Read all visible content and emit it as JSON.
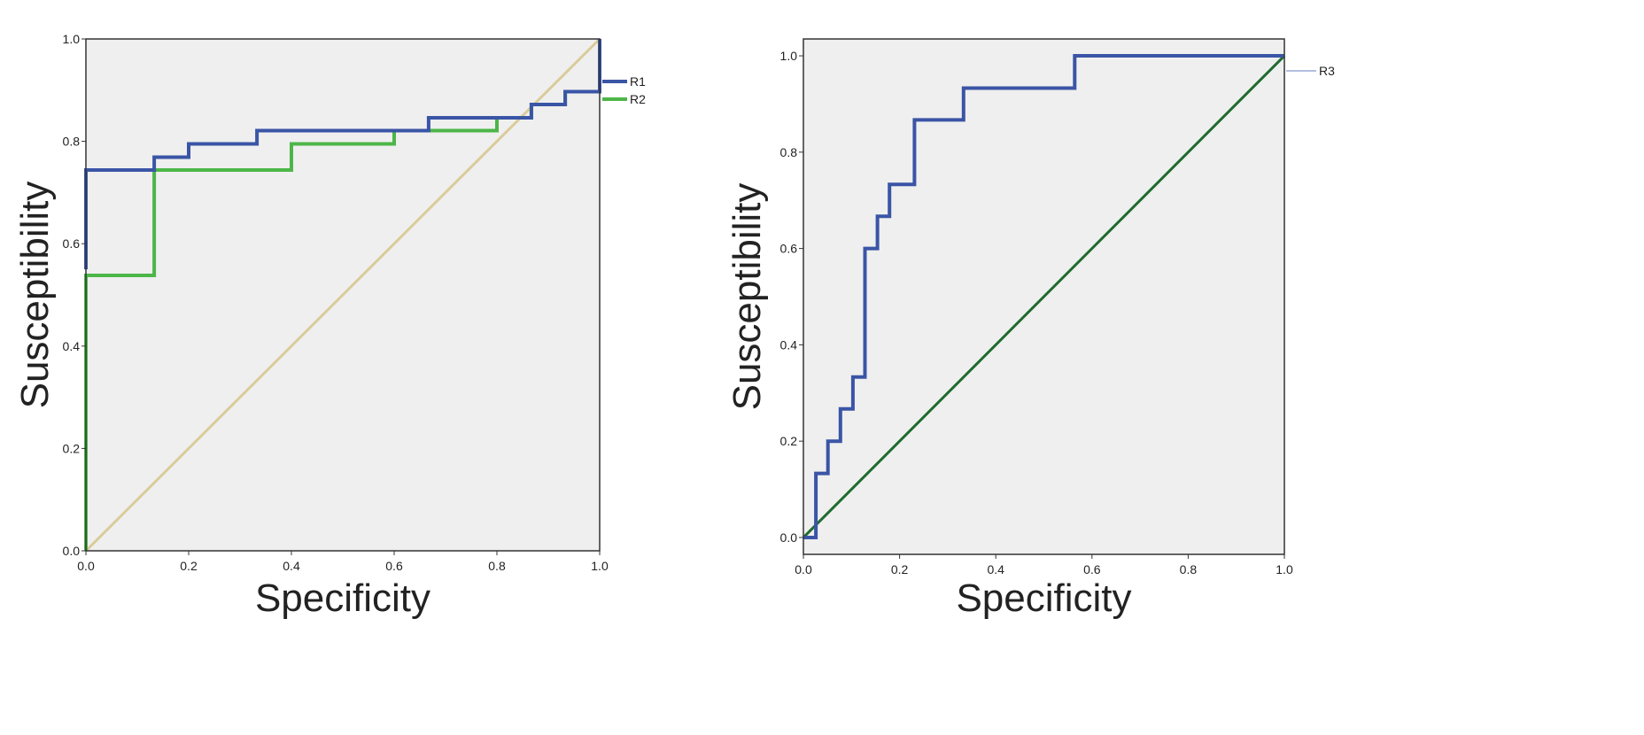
{
  "chart_data": [
    {
      "type": "line",
      "title": "",
      "xlabel": "Specificity",
      "ylabel": "Susceptibility",
      "xlim": [
        0,
        1
      ],
      "ylim": [
        0,
        1
      ],
      "x_ticks": [
        "0.0",
        "0.2",
        "0.4",
        "0.6",
        "0.8",
        "1.0"
      ],
      "y_ticks": [
        "0.0",
        "0.2",
        "0.4",
        "0.6",
        "0.8",
        "1.0"
      ],
      "grid": false,
      "legend": "right",
      "background": "#efefef",
      "reference_line": {
        "x": [
          0,
          1
        ],
        "y": [
          0,
          1
        ],
        "color": "#d9cc9a"
      },
      "series": [
        {
          "name": "R1",
          "color": "#3a55a6",
          "x": [
            0,
            0,
            0.133,
            0.133,
            0.2,
            0.2,
            0.333,
            0.333,
            0.667,
            0.667,
            0.867,
            0.867,
            0.933,
            0.933,
            1.0,
            1.0
          ],
          "y": [
            0.55,
            0.744,
            0.744,
            0.769,
            0.769,
            0.795,
            0.795,
            0.821,
            0.821,
            0.846,
            0.846,
            0.872,
            0.872,
            0.897,
            0.897,
            1.0
          ]
        },
        {
          "name": "R2",
          "color": "#4cb648",
          "x": [
            0,
            0,
            0.133,
            0.133,
            0.4,
            0.4,
            0.6,
            0.6,
            0.8,
            0.8,
            0.867,
            0.867,
            0.933,
            0.933,
            1.0,
            1.0
          ],
          "y": [
            0,
            0.538,
            0.538,
            0.744,
            0.744,
            0.795,
            0.795,
            0.821,
            0.821,
            0.846,
            0.846,
            0.872,
            0.872,
            0.897,
            0.897,
            1.0
          ]
        }
      ]
    },
    {
      "type": "line",
      "title": "",
      "xlabel": "Specificity",
      "ylabel": "Susceptibility",
      "xlim": [
        0,
        1
      ],
      "ylim": [
        -0.035,
        1.035
      ],
      "x_ticks": [
        "0.0",
        "0.2",
        "0.4",
        "0.6",
        "0.8",
        "1.0"
      ],
      "y_ticks": [
        "0.0",
        "0.2",
        "0.4",
        "0.6",
        "0.8",
        "1.0"
      ],
      "grid": false,
      "legend": "right",
      "background": "#efefef",
      "reference_line": {
        "x": [
          0,
          1
        ],
        "y": [
          0,
          1
        ],
        "color": "#1e6b2e"
      },
      "series": [
        {
          "name": "R3",
          "color": "#3a55a6",
          "x": [
            0,
            0.026,
            0.026,
            0.051,
            0.051,
            0.077,
            0.077,
            0.103,
            0.103,
            0.128,
            0.128,
            0.154,
            0.154,
            0.179,
            0.179,
            0.231,
            0.231,
            0.333,
            0.333,
            0.564,
            0.564,
            1.0
          ],
          "y": [
            0,
            0,
            0.133,
            0.133,
            0.2,
            0.2,
            0.267,
            0.267,
            0.333,
            0.333,
            0.6,
            0.6,
            0.667,
            0.667,
            0.733,
            0.733,
            0.867,
            0.867,
            0.933,
            0.933,
            1.0,
            1.0
          ]
        }
      ]
    }
  ]
}
